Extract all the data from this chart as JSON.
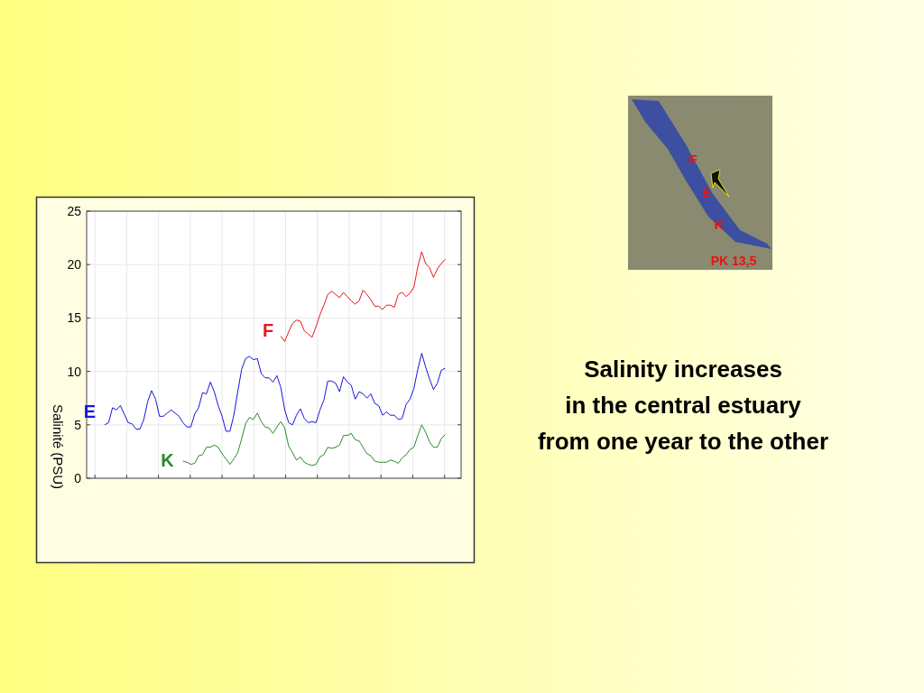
{
  "chart_data": {
    "type": "line",
    "title": "Salinity increases\nin the central estuary\nfrom one year to the other",
    "ylabel": "Salinité (PSU)",
    "categories": [
      null,
      null,
      null,
      null,
      null,
      null,
      null,
      null,
      null,
      null,
      null,
      null,
      null,
      null,
      null,
      null,
      null,
      null,
      null,
      null,
      null,
      null,
      null,
      null,
      null,
      null,
      null,
      null,
      null,
      null,
      null,
      null,
      null,
      null,
      null,
      null,
      null,
      null,
      null,
      null,
      null,
      null,
      null,
      null,
      null,
      null,
      null,
      null,
      null,
      null,
      null,
      null,
      null,
      null,
      null,
      null,
      null,
      null,
      null,
      null,
      null,
      null,
      null,
      null,
      null,
      null,
      null,
      null,
      null,
      null,
      null,
      null,
      null,
      null,
      null,
      null,
      null,
      null,
      null,
      null,
      null,
      null,
      null,
      null,
      null,
      null,
      null,
      null
    ],
    "ylim": [
      0,
      25
    ],
    "yticks": [
      0,
      5,
      10,
      15,
      20,
      25
    ],
    "grid": true,
    "tick_labels": "y",
    "marker": "none",
    "line_style": "solid",
    "series": [
      {
        "name": "F",
        "color": "#e8141c",
        "values": [
          null,
          null,
          null,
          null,
          null,
          null,
          null,
          null,
          null,
          null,
          null,
          null,
          null,
          null,
          null,
          null,
          null,
          null,
          null,
          null,
          null,
          null,
          null,
          null,
          null,
          null,
          null,
          null,
          null,
          null,
          null,
          null,
          null,
          null,
          null,
          null,
          null,
          null,
          null,
          null,
          null,
          null,
          null,
          null,
          null,
          13.3,
          12.8,
          13.7,
          14.5,
          14.8,
          14.7,
          13.8,
          13.5,
          13.2,
          14.2,
          15.3,
          16.2,
          17.2,
          17.5,
          17.2,
          16.9,
          17.4,
          17.0,
          16.6,
          16.3,
          16.6,
          17.6,
          17.2,
          16.7,
          16.1,
          16.1,
          15.8,
          16.2,
          16.2,
          16.0,
          17.2,
          17.4,
          17.0,
          17.3,
          17.9,
          19.8,
          21.2,
          20.1,
          19.7,
          18.8,
          19.6,
          20.1,
          20.5
        ]
      },
      {
        "name": "E",
        "color": "#1414e0",
        "values": [
          5.0,
          5.2,
          6.6,
          6.4,
          6.8,
          6.0,
          5.2,
          5.1,
          4.6,
          4.6,
          5.5,
          7.2,
          8.2,
          7.4,
          5.8,
          5.8,
          6.1,
          6.4,
          6.1,
          5.8,
          5.2,
          4.8,
          4.8,
          6.0,
          6.6,
          8.0,
          7.9,
          9.0,
          8.1,
          6.8,
          5.8,
          4.4,
          4.4,
          5.9,
          8.1,
          10.2,
          11.2,
          11.4,
          11.1,
          11.2,
          9.8,
          9.4,
          9.4,
          9.0,
          9.6,
          8.5,
          6.4,
          5.2,
          5.0,
          5.9,
          6.5,
          5.6,
          5.2,
          5.3,
          5.2,
          6.4,
          7.3,
          9.1,
          9.1,
          8.9,
          8.1,
          9.5,
          9.0,
          8.7,
          7.4,
          8.1,
          7.9,
          7.5,
          7.9,
          7.0,
          6.8,
          5.9,
          6.2,
          5.9,
          5.9,
          5.5,
          5.6,
          6.9,
          7.4,
          8.4,
          10.2,
          11.7,
          10.4,
          9.3,
          8.3,
          8.9,
          10.1,
          10.3
        ]
      },
      {
        "name": "K",
        "color": "#2a8a2a",
        "values": [
          null,
          null,
          null,
          null,
          null,
          null,
          null,
          null,
          null,
          null,
          null,
          null,
          null,
          null,
          null,
          null,
          null,
          null,
          null,
          null,
          1.6,
          1.5,
          1.3,
          1.4,
          2.1,
          2.2,
          2.9,
          2.9,
          3.1,
          2.9,
          2.3,
          1.8,
          1.3,
          1.8,
          2.4,
          3.7,
          5.1,
          5.7,
          5.5,
          6.1,
          5.3,
          4.8,
          4.7,
          4.2,
          4.8,
          5.3,
          4.7,
          3.0,
          2.4,
          1.7,
          2.0,
          1.5,
          1.3,
          1.2,
          1.3,
          2.0,
          2.2,
          2.9,
          2.8,
          2.9,
          3.1,
          4.0,
          4.0,
          4.2,
          3.6,
          3.5,
          2.9,
          2.3,
          2.1,
          1.6,
          1.5,
          1.5,
          1.5,
          1.7,
          1.6,
          1.4,
          1.9,
          2.2,
          2.7,
          2.9,
          4.0,
          5.0,
          4.3,
          3.4,
          2.9,
          2.9,
          3.7,
          4.1
        ]
      }
    ],
    "annotations": [
      "F",
      "E",
      "K",
      "PK 13,5"
    ]
  }
}
